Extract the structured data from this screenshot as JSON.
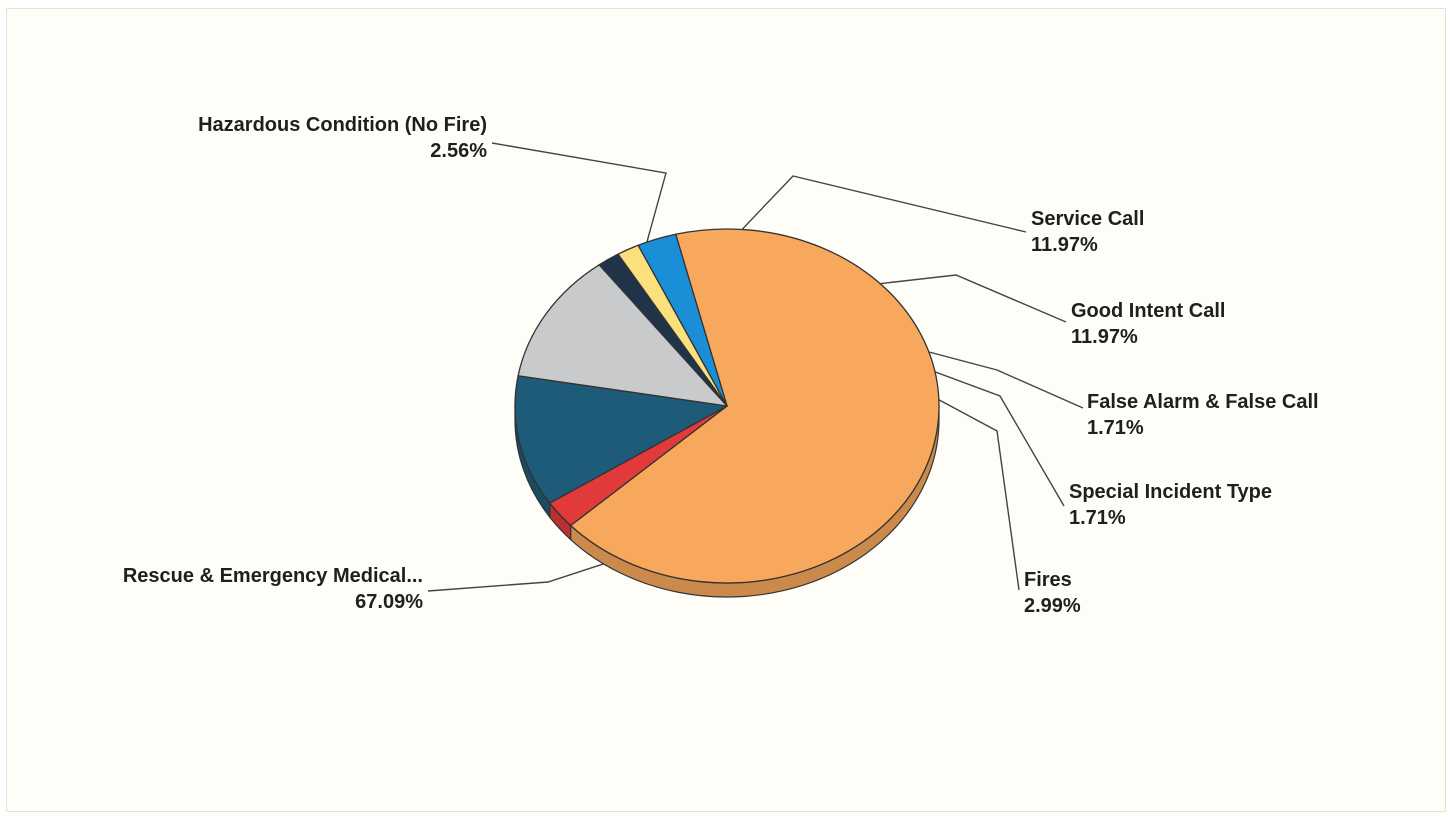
{
  "chart_data": {
    "type": "pie",
    "title": "",
    "slices": [
      {
        "label": "Rescue & Emergency Medical...",
        "percent_text": "67.09%",
        "value": 67.09,
        "color": "#f7a85c"
      },
      {
        "label": "Hazardous Condition (No Fire)",
        "percent_text": "2.56%",
        "value": 2.56,
        "color": "#e23a3a"
      },
      {
        "label": "Service Call",
        "percent_text": "11.97%",
        "value": 11.97,
        "color": "#1e5b78"
      },
      {
        "label": "Good Intent Call",
        "percent_text": "11.97%",
        "value": 11.97,
        "color": "#c8cacb"
      },
      {
        "label": "False Alarm & False Call",
        "percent_text": "1.71%",
        "value": 1.71,
        "color": "#1f3448"
      },
      {
        "label": "Special Incident Type",
        "percent_text": "1.71%",
        "value": 1.71,
        "color": "#fbe07e"
      },
      {
        "label": "Fires",
        "percent_text": "2.99%",
        "value": 2.99,
        "color": "#1a8fd8"
      }
    ],
    "legend": "none",
    "style": "3d-tilted"
  }
}
